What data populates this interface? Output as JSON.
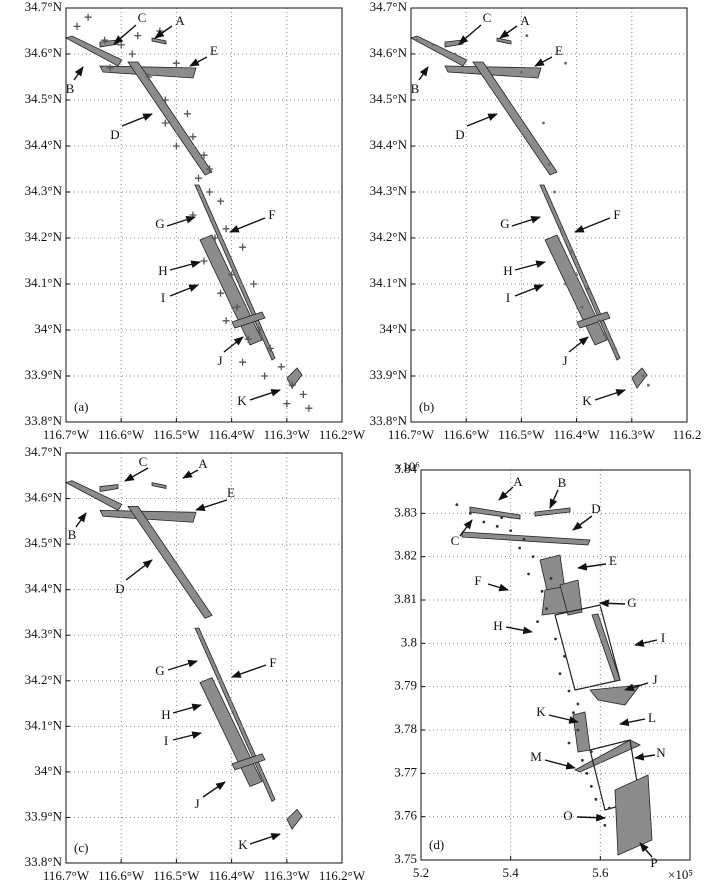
{
  "chart_data": [
    {
      "type": "scatter",
      "panel_label": "(a)",
      "marker": "plus",
      "color": "#555555",
      "grid": true,
      "xlim": [
        -116.7,
        -116.2
      ],
      "xticks": [
        {
          "value": -116.7,
          "label": "116.7°W"
        },
        {
          "value": -116.6,
          "label": "116.6°W"
        },
        {
          "value": -116.5,
          "label": "116.5°W"
        },
        {
          "value": -116.4,
          "label": "116.4°W"
        },
        {
          "value": -116.3,
          "label": "116.3°W"
        },
        {
          "value": -116.2,
          "label": "116.2°W"
        }
      ],
      "ylim": [
        33.8,
        34.7
      ],
      "yticks": [
        {
          "value": 34.7,
          "label": "34.7°N"
        },
        {
          "value": 34.6,
          "label": "34.6°N"
        },
        {
          "value": 34.5,
          "label": "34.5°N"
        },
        {
          "value": 34.4,
          "label": "34.4°N"
        },
        {
          "value": 34.3,
          "label": "34.3°N"
        },
        {
          "value": 34.2,
          "label": "34.2°N"
        },
        {
          "value": 34.1,
          "label": "34.1°N"
        },
        {
          "value": 34,
          "label": "34°N"
        },
        {
          "value": 33.9,
          "label": "33.9°N"
        },
        {
          "value": 33.8,
          "label": "33.8°N"
        }
      ],
      "x": [
        -116.68,
        -116.66,
        -116.63,
        -116.6,
        -116.57,
        -116.53,
        -116.5,
        -116.55,
        -116.52,
        -116.48,
        -116.47,
        -116.45,
        -116.5,
        -116.46,
        -116.44,
        -116.42,
        -116.47,
        -116.43,
        -116.41,
        -116.45,
        -116.4,
        -116.38,
        -116.42,
        -116.39,
        -116.36,
        -116.41,
        -116.37,
        -116.35,
        -116.33,
        -116.38,
        -116.34,
        -116.31,
        -116.29,
        -116.27,
        -116.3,
        -116.26,
        -116.44,
        -116.62,
        -116.58,
        -116.52
      ],
      "y": [
        34.66,
        34.68,
        34.63,
        34.62,
        34.64,
        34.65,
        34.58,
        34.55,
        34.5,
        34.47,
        34.42,
        34.38,
        34.4,
        34.33,
        34.3,
        34.28,
        34.25,
        34.2,
        34.22,
        34.15,
        34.12,
        34.18,
        34.08,
        34.05,
        34.1,
        34.02,
        33.98,
        34,
        33.96,
        33.93,
        33.9,
        33.92,
        33.88,
        33.86,
        33.84,
        33.83,
        34.35,
        34.57,
        34.6,
        34.45
      ],
      "annotations": [
        "A",
        "B",
        "C",
        "D",
        "E",
        "F",
        "G",
        "H",
        "I",
        "J",
        "K"
      ]
    },
    {
      "type": "scatter",
      "panel_label": "(b)",
      "marker": "dot",
      "color": "#666666",
      "grid": true,
      "xlim": [
        -116.7,
        -116.2
      ],
      "xticks": [
        {
          "value": -116.7,
          "label": "116.7°W"
        },
        {
          "value": -116.6,
          "label": "116.6°W"
        },
        {
          "value": -116.5,
          "label": "116.5°W"
        },
        {
          "value": -116.4,
          "label": "116.4°W"
        },
        {
          "value": -116.3,
          "label": "116.3°W"
        },
        {
          "value": -116.2,
          "label": "116.2"
        }
      ],
      "ylim": [
        33.8,
        34.7
      ],
      "yticks": [
        {
          "value": 34.7,
          "label": "34.7°N"
        },
        {
          "value": 34.6,
          "label": "34.6°N"
        },
        {
          "value": 34.5,
          "label": "34.5°N"
        },
        {
          "value": 34.4,
          "label": "34.4°N"
        },
        {
          "value": 34.3,
          "label": "34.3°N"
        },
        {
          "value": 34.2,
          "label": "34.2°N"
        },
        {
          "value": 34.1,
          "label": "34.1°N"
        },
        {
          "value": 34,
          "label": "34°N"
        },
        {
          "value": 33.9,
          "label": "33.9°N"
        },
        {
          "value": 33.8,
          "label": "33.8°N"
        }
      ],
      "x": [
        -116.69,
        -116.66,
        -116.62,
        -116.49,
        -116.42,
        -116.45,
        -116.44,
        -116.43,
        -116.41,
        -116.4,
        -116.38,
        -116.42,
        -116.39,
        -116.36,
        -116.35,
        -116.33,
        -116.28,
        -116.27,
        -116.5,
        -116.46
      ],
      "y": [
        34.63,
        34.62,
        34.6,
        34.64,
        34.58,
        34.36,
        34.3,
        34.22,
        34.17,
        34.12,
        34.09,
        34.1,
        34.05,
        34.02,
        33.99,
        33.96,
        33.9,
        33.88,
        34.56,
        34.45
      ],
      "annotations": [
        "A",
        "B",
        "C",
        "D",
        "E",
        "F",
        "G",
        "H",
        "I",
        "J",
        "K"
      ]
    },
    {
      "type": "map",
      "panel_label": "(c)",
      "grid": true,
      "xlim": [
        -116.7,
        -116.2
      ],
      "xticks": [
        {
          "value": -116.7,
          "label": "116.7°W"
        },
        {
          "value": -116.6,
          "label": "116.6°W"
        },
        {
          "value": -116.5,
          "label": "116.5°W"
        },
        {
          "value": -116.4,
          "label": "116.4°W"
        },
        {
          "value": -116.3,
          "label": "116.3°W"
        },
        {
          "value": -116.2,
          "label": "116.2°W"
        }
      ],
      "ylim": [
        33.8,
        34.7
      ],
      "yticks": [
        {
          "value": 34.7,
          "label": "34.7°N"
        },
        {
          "value": 34.6,
          "label": "34.6°N"
        },
        {
          "value": 34.5,
          "label": "34.5°N"
        },
        {
          "value": 34.4,
          "label": "34.4°N"
        },
        {
          "value": 34.3,
          "label": "34.3°N"
        },
        {
          "value": 34.2,
          "label": "34.2°N"
        },
        {
          "value": 34.1,
          "label": "34.1°N"
        },
        {
          "value": 34,
          "label": "34°N"
        },
        {
          "value": 33.9,
          "label": "33.9°N"
        },
        {
          "value": 33.8,
          "label": "33.8°N"
        }
      ],
      "annotations": [
        "A",
        "B",
        "C",
        "D",
        "E",
        "F",
        "G",
        "H",
        "I",
        "J",
        "K"
      ]
    },
    {
      "type": "scatter",
      "panel_label": "(d)",
      "marker": "dot",
      "color": "#333333",
      "grid": true,
      "x_multiplier": "×10⁵",
      "y_multiplier": "×10⁶",
      "xlim": [
        5.2,
        5.8
      ],
      "xticks": [
        5.2,
        5.4,
        5.6
      ],
      "ylim": [
        3.75,
        3.84
      ],
      "yticks": [
        3.84,
        3.83,
        3.82,
        3.81,
        3.8,
        3.79,
        3.78,
        3.77,
        3.76,
        3.75
      ],
      "x": [
        5.28,
        5.31,
        5.34,
        5.37,
        5.4,
        5.43,
        5.45,
        5.44,
        5.47,
        5.48,
        5.46,
        5.5,
        5.52,
        5.51,
        5.53,
        5.54,
        5.55,
        5.53,
        5.56,
        5.57,
        5.58,
        5.59,
        5.6,
        5.61,
        5.62,
        5.58,
        5.49,
        5.42,
        5.38,
        5.55
      ],
      "y": [
        3.832,
        3.83,
        3.828,
        3.827,
        3.826,
        3.824,
        3.82,
        3.816,
        3.812,
        3.808,
        3.805,
        3.801,
        3.797,
        3.793,
        3.789,
        3.784,
        3.78,
        3.777,
        3.773,
        3.77,
        3.767,
        3.764,
        3.76,
        3.758,
        3.762,
        3.775,
        3.815,
        3.822,
        3.829,
        3.786
      ],
      "annotations": [
        "A",
        "B",
        "C",
        "D",
        "E",
        "F",
        "G",
        "H",
        "I",
        "J",
        "K",
        "L",
        "M",
        "N",
        "O",
        "P"
      ]
    }
  ]
}
